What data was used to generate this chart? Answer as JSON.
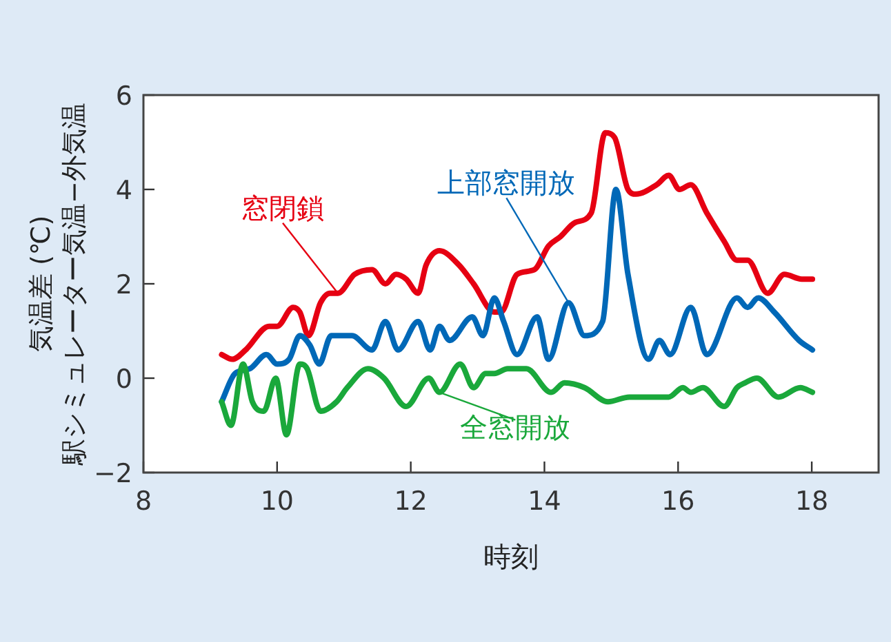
{
  "chart_data": {
    "type": "line",
    "xlabel": "時刻",
    "ylabel": "気温差 (℃)\n駅シミュレーター気温−外気温",
    "xlim": [
      8,
      19
    ],
    "xticks": [
      8,
      10,
      12,
      14,
      16,
      18
    ],
    "ylim": [
      -2,
      6
    ],
    "yticks": [
      {
        "value": -2,
        "label": "−2"
      },
      0,
      2,
      4,
      6
    ],
    "grid": false,
    "marker": "none",
    "line_style": "solid",
    "series": [
      {
        "name": "窓閉鎖",
        "color": "#e60012",
        "x": [
          9.17,
          9.33,
          9.53,
          9.88,
          10.0,
          10.24,
          10.34,
          10.47,
          10.65,
          10.79,
          10.91,
          11.16,
          11.42,
          11.62,
          11.78,
          11.93,
          12.11,
          12.23,
          12.43,
          12.72,
          12.94,
          13.25,
          13.35,
          13.59,
          13.85,
          14.06,
          14.24,
          14.46,
          14.7,
          14.91,
          15.05,
          15.25,
          15.37,
          15.68,
          15.86,
          16.02,
          16.19,
          16.43,
          16.69,
          16.88,
          17.04,
          17.34,
          17.59,
          17.85,
          18.01
        ],
        "values": [
          0.5,
          0.4,
          0.6,
          1.1,
          1.1,
          1.5,
          1.4,
          0.9,
          1.6,
          1.8,
          1.8,
          2.2,
          2.3,
          2.0,
          2.2,
          2.1,
          1.8,
          2.4,
          2.7,
          2.4,
          2.0,
          1.4,
          1.4,
          2.2,
          2.3,
          2.8,
          3.0,
          3.3,
          3.5,
          5.2,
          5.1,
          4.0,
          3.9,
          4.1,
          4.3,
          4.0,
          4.1,
          3.5,
          2.9,
          2.5,
          2.5,
          1.8,
          2.2,
          2.1,
          2.1
        ]
      },
      {
        "name": "上部窓開放",
        "color": "#0068b7",
        "x": [
          9.17,
          9.37,
          9.59,
          9.84,
          10.0,
          10.18,
          10.34,
          10.49,
          10.63,
          10.81,
          10.95,
          11.12,
          11.42,
          11.62,
          11.81,
          12.11,
          12.29,
          12.43,
          12.58,
          12.92,
          13.08,
          13.25,
          13.39,
          13.59,
          13.89,
          14.06,
          14.36,
          14.6,
          14.87,
          15.07,
          15.25,
          15.56,
          15.72,
          15.88,
          16.19,
          16.43,
          16.88,
          17.04,
          17.2,
          17.44,
          17.81,
          18.01
        ],
        "values": [
          -0.5,
          0.1,
          0.2,
          0.5,
          0.3,
          0.4,
          0.9,
          0.7,
          0.3,
          0.9,
          0.9,
          0.9,
          0.6,
          1.2,
          0.6,
          1.2,
          0.6,
          1.1,
          0.8,
          1.3,
          0.9,
          1.7,
          1.2,
          0.5,
          1.3,
          0.4,
          1.6,
          0.9,
          1.2,
          4.0,
          2.2,
          0.4,
          0.8,
          0.5,
          1.5,
          0.5,
          1.7,
          1.5,
          1.7,
          1.4,
          0.8,
          0.6
        ]
      },
      {
        "name": "全窓開放",
        "color": "#1aa83b",
        "x": [
          9.17,
          9.31,
          9.49,
          9.63,
          9.8,
          9.98,
          10.14,
          10.34,
          10.45,
          10.65,
          10.89,
          11.05,
          11.36,
          11.6,
          11.93,
          12.27,
          12.43,
          12.74,
          12.94,
          13.12,
          13.25,
          13.45,
          13.73,
          14.1,
          14.3,
          14.6,
          14.95,
          15.27,
          15.86,
          16.07,
          16.19,
          16.37,
          16.69,
          16.88,
          17.0,
          17.18,
          17.5,
          17.83,
          18.01
        ],
        "values": [
          -0.5,
          -1.0,
          0.3,
          -0.5,
          -0.7,
          0.0,
          -1.2,
          0.3,
          0.2,
          -0.7,
          -0.5,
          -0.2,
          0.2,
          0.0,
          -0.6,
          0.0,
          -0.3,
          0.3,
          -0.2,
          0.1,
          0.1,
          0.2,
          0.2,
          -0.3,
          -0.1,
          -0.2,
          -0.5,
          -0.4,
          -0.4,
          -0.2,
          -0.3,
          -0.2,
          -0.6,
          -0.2,
          -0.1,
          0.0,
          -0.4,
          -0.2,
          -0.3
        ]
      }
    ]
  }
}
